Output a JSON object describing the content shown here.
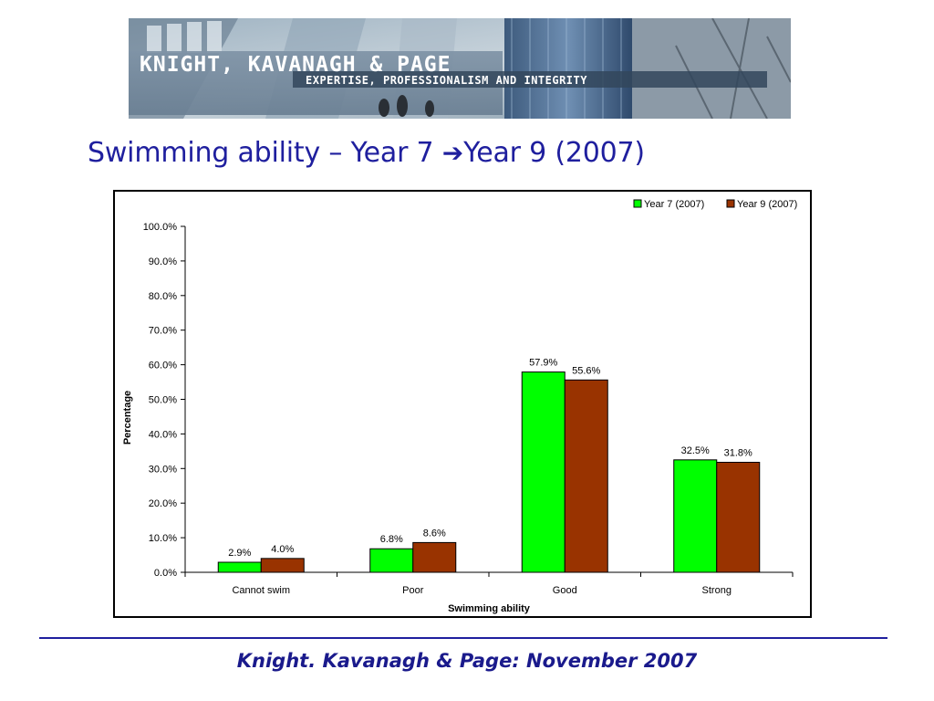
{
  "banner": {
    "company": "KNIGHT, KAVANAGH & PAGE",
    "tagline": "EXPERTISE, PROFESSIONALISM AND INTEGRITY"
  },
  "slide": {
    "title_part1": "Swimming ability – Year 7 ",
    "title_arrow": "➔",
    "title_part2": "Year 9 (2007)"
  },
  "chart_data": {
    "type": "bar",
    "categories": [
      "Cannot swim",
      "Poor",
      "Good",
      "Strong"
    ],
    "series": [
      {
        "name": "Year 7 (2007)",
        "values": [
          2.9,
          6.8,
          57.9,
          32.5
        ],
        "color": "#00ff00"
      },
      {
        "name": "Year 9 (2007)",
        "values": [
          4.0,
          8.6,
          55.6,
          31.8
        ],
        "color": "#993300"
      }
    ],
    "data_labels": {
      "Year 7 (2007)": [
        "2.9%",
        "6.8%",
        "57.9%",
        "32.5%"
      ],
      "Year 9 (2007)": [
        "4.0%",
        "8.6%",
        "55.6%",
        "31.8%"
      ]
    },
    "xlabel": "Swimming ability",
    "ylabel": "Percentage",
    "ylim": [
      0,
      100
    ],
    "yticks": [
      "0.0%",
      "10.0%",
      "20.0%",
      "30.0%",
      "40.0%",
      "50.0%",
      "60.0%",
      "70.0%",
      "80.0%",
      "90.0%",
      "100.0%"
    ],
    "grid": false,
    "legend": "top-right"
  },
  "footer": {
    "text": "Knight. Kavanagh & Page: November 2007"
  }
}
